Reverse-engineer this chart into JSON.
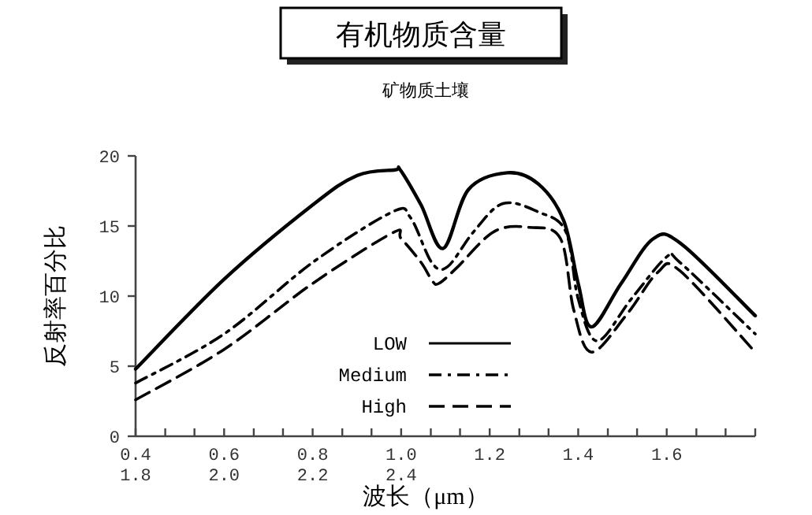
{
  "chart_data": {
    "type": "line",
    "title": "有机物质含量",
    "subtitle": "矿物质土壤",
    "xlabel": "波长（μm）",
    "ylabel": "反射率百分比",
    "xlim": [
      0.4,
      1.8
    ],
    "ylim": [
      0,
      20
    ],
    "xticks": [
      {
        "value": 0.4,
        "label": "0.4\n1.8"
      },
      {
        "value": 0.467,
        "label": null
      },
      {
        "value": 0.533,
        "label": null
      },
      {
        "value": 0.6,
        "label": "0.6\n2.0"
      },
      {
        "value": 0.667,
        "label": null
      },
      {
        "value": 0.733,
        "label": null
      },
      {
        "value": 0.8,
        "label": "0.8\n2.2"
      },
      {
        "value": 0.867,
        "label": null
      },
      {
        "value": 0.933,
        "label": null
      },
      {
        "value": 1.0,
        "label": "1.0\n2.4"
      },
      {
        "value": 1.067,
        "label": null
      },
      {
        "value": 1.133,
        "label": null
      },
      {
        "value": 1.2,
        "label": "1.2"
      },
      {
        "value": 1.267,
        "label": null
      },
      {
        "value": 1.333,
        "label": null
      },
      {
        "value": 1.4,
        "label": "1.4"
      },
      {
        "value": 1.467,
        "label": null
      },
      {
        "value": 1.533,
        "label": null
      },
      {
        "value": 1.6,
        "label": "1.6"
      },
      {
        "value": 1.667,
        "label": null
      },
      {
        "value": 1.733,
        "label": null
      },
      {
        "value": 1.8,
        "label": null
      }
    ],
    "yticks": [
      0,
      5,
      10,
      15,
      20
    ],
    "grid": false,
    "legend": "bottom",
    "marker": "none",
    "series": [
      {
        "name": "LOW",
        "color": "#000000",
        "line_style": "solid",
        "x": [
          0.4,
          0.6,
          0.8,
          0.9,
          0.986,
          0.998,
          1.045,
          1.095,
          1.152,
          1.24,
          1.31,
          1.367,
          1.4,
          1.43,
          1.497,
          1.57,
          1.634,
          1.8
        ],
        "values": [
          4.8,
          11.2,
          16.5,
          18.6,
          19.0,
          19.0,
          16.5,
          13.4,
          17.6,
          18.8,
          18.0,
          15.4,
          10.9,
          7.8,
          10.9,
          14.1,
          13.7,
          8.6
        ]
      },
      {
        "name": "Medium",
        "color": "#000000",
        "line_style": "dashdot",
        "x": [
          0.4,
          0.6,
          0.8,
          0.98,
          1.021,
          1.069,
          1.105,
          1.164,
          1.23,
          1.31,
          1.372,
          1.4,
          1.443,
          1.52,
          1.6,
          1.63,
          1.8
        ],
        "values": [
          3.8,
          7.3,
          12.4,
          16.0,
          15.6,
          12.4,
          12.1,
          14.6,
          16.6,
          16.0,
          14.6,
          9.8,
          6.8,
          9.8,
          12.8,
          12.4,
          7.3
        ]
      },
      {
        "name": "High",
        "color": "#000000",
        "line_style": "dashed",
        "x": [
          0.4,
          0.6,
          0.8,
          0.98,
          1.0,
          1.045,
          1.07,
          1.085,
          1.125,
          1.21,
          1.29,
          1.36,
          1.39,
          1.43,
          1.51,
          1.58,
          1.63,
          1.8
        ],
        "values": [
          2.6,
          6.2,
          10.9,
          14.5,
          14.1,
          12.4,
          11.1,
          10.9,
          12.0,
          14.6,
          14.9,
          14.1,
          9.0,
          6.0,
          8.7,
          11.7,
          11.8,
          6.0
        ]
      }
    ]
  }
}
